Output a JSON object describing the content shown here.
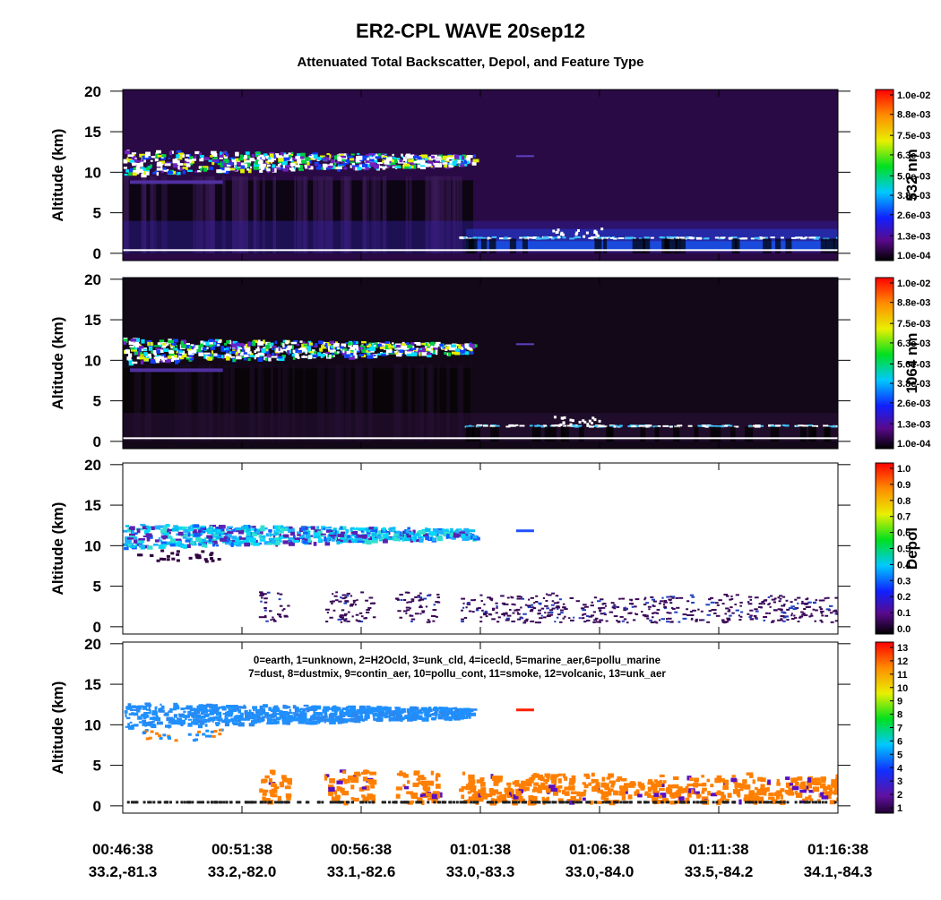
{
  "figure": {
    "title": "ER2-CPL WAVE 20sep12",
    "subtitle": "Attenuated Total Backscatter, Depol, and Feature Type",
    "xticks": [
      {
        "time": "00:46:38",
        "position": "33.2,-81.3"
      },
      {
        "time": "00:51:38",
        "position": "33.2,-82.0"
      },
      {
        "time": "00:56:38",
        "position": "33.1,-82.6"
      },
      {
        "time": "01:01:38",
        "position": "33.0,-83.3"
      },
      {
        "time": "01:06:38",
        "position": "33.0,-84.0"
      },
      {
        "time": "01:11:38",
        "position": "33.5,-84.2"
      },
      {
        "time": "01:16:38",
        "position": "34.1,-84.3"
      }
    ]
  },
  "chart_data": [
    {
      "type": "curtain",
      "kind": "backscatter",
      "ylabel": "Altitude (km)",
      "ylim": [
        -0.9,
        20.2
      ],
      "yticks": [
        0,
        5,
        10,
        15,
        20
      ],
      "colorbar": {
        "label": "532 nm",
        "clim": [
          0.0001,
          0.01
        ],
        "ticks": [
          {
            "value": 0.0001,
            "label": "1.0e-04"
          },
          {
            "value": 0.0013,
            "label": "1.3e-03"
          },
          {
            "value": 0.0026,
            "label": "2.6e-03"
          },
          {
            "value": 0.0038,
            "label": "3.8e-03"
          },
          {
            "value": 0.005,
            "label": "5.0e-03"
          },
          {
            "value": 0.0063,
            "label": "6.3e-03"
          },
          {
            "value": 0.0075,
            "label": "7.5e-03"
          },
          {
            "value": 0.0088,
            "label": "8.8e-03"
          },
          {
            "value": 0.01,
            "label": "1.0e-02"
          }
        ]
      }
    },
    {
      "type": "curtain",
      "kind": "backscatter1064",
      "ylabel": "Altitude (km)",
      "ylim": [
        -0.9,
        20.2
      ],
      "yticks": [
        0,
        5,
        10,
        15,
        20
      ],
      "colorbar": {
        "label": "1064 nm",
        "clim": [
          0.0001,
          0.01
        ],
        "ticks": [
          {
            "value": 0.0001,
            "label": "1.0e-04"
          },
          {
            "value": 0.0013,
            "label": "1.3e-03"
          },
          {
            "value": 0.0026,
            "label": "2.6e-03"
          },
          {
            "value": 0.0038,
            "label": "3.8e-03"
          },
          {
            "value": 0.005,
            "label": "5.0e-03"
          },
          {
            "value": 0.0063,
            "label": "6.3e-03"
          },
          {
            "value": 0.0075,
            "label": "7.5e-03"
          },
          {
            "value": 0.0088,
            "label": "8.8e-03"
          },
          {
            "value": 0.01,
            "label": "1.0e-02"
          }
        ]
      }
    },
    {
      "type": "curtain",
      "kind": "depol",
      "ylabel": "Altitude (km)",
      "ylim": [
        -0.9,
        20.2
      ],
      "yticks": [
        0,
        5,
        10,
        15,
        20
      ],
      "colorbar": {
        "label": "Depol",
        "clim": [
          0,
          1
        ],
        "ticks": [
          {
            "value": 0,
            "label": "0.0"
          },
          0.1,
          0.2,
          0.3,
          0.4,
          0.5,
          0.6,
          0.7,
          0.8,
          0.9,
          {
            "value": 1,
            "label": "1.0"
          }
        ]
      }
    },
    {
      "type": "curtain",
      "kind": "feature",
      "ylabel": "Altitude (km)",
      "ylim": [
        -0.9,
        20.2
      ],
      "yticks": [
        0,
        5,
        10,
        15,
        20
      ],
      "legend": [
        "0=earth, 1=unknown, 2=H2Ocld, 3=unk_cld, 4=icecld, 5=marine_aer,6=pollu_marine",
        "7=dust, 8=dustmix, 9=contin_aer, 10=pollu_cont, 11=smoke, 12=volcanic, 13=unk_aer"
      ],
      "colorbar": {
        "clim": [
          1,
          13
        ],
        "ticks": [
          1,
          2,
          3,
          4,
          5,
          6,
          7,
          8,
          9,
          10,
          11,
          12,
          13
        ]
      }
    }
  ]
}
